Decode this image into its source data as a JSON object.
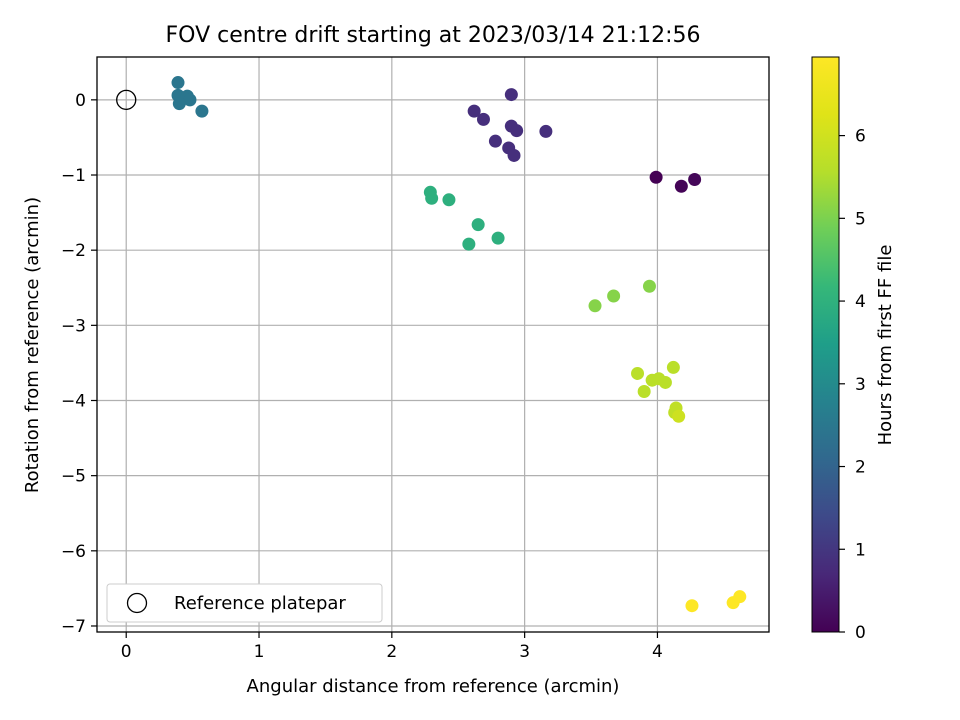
{
  "chart_data": {
    "type": "scatter",
    "title": "FOV centre drift starting at 2023/03/14 21:12:56",
    "xlabel": "Angular distance from reference (arcmin)",
    "ylabel": "Rotation from reference (arcmin)",
    "xlim": [
      -0.22,
      4.84
    ],
    "ylim": [
      -7.08,
      0.57
    ],
    "xticks": [
      0,
      1,
      2,
      3,
      4
    ],
    "yticks": [
      0,
      -1,
      -2,
      -3,
      -4,
      -5,
      -6,
      -7
    ],
    "grid": true,
    "legend": {
      "location": "lower-left",
      "entries": [
        "Reference platepar"
      ]
    },
    "reference_point": {
      "x": 0,
      "y": 0,
      "label": "Reference platepar"
    },
    "colorbar": {
      "label": "Hours from first FF file",
      "colormap": "viridis",
      "range": [
        0,
        6.95
      ],
      "ticks": [
        0,
        1,
        2,
        3,
        4,
        5,
        6
      ]
    },
    "points": [
      {
        "x": 3.99,
        "y": -1.03,
        "hours": 0.0
      },
      {
        "x": 4.18,
        "y": -1.15,
        "hours": 0.05
      },
      {
        "x": 4.28,
        "y": -1.06,
        "hours": 0.1
      },
      {
        "x": 2.9,
        "y": 0.07,
        "hours": 0.85
      },
      {
        "x": 2.62,
        "y": -0.15,
        "hours": 0.85
      },
      {
        "x": 2.69,
        "y": -0.26,
        "hours": 0.85
      },
      {
        "x": 2.9,
        "y": -0.35,
        "hours": 0.85
      },
      {
        "x": 2.94,
        "y": -0.41,
        "hours": 0.85
      },
      {
        "x": 3.16,
        "y": -0.42,
        "hours": 0.85
      },
      {
        "x": 2.78,
        "y": -0.55,
        "hours": 0.85
      },
      {
        "x": 2.88,
        "y": -0.64,
        "hours": 0.85
      },
      {
        "x": 2.92,
        "y": -0.74,
        "hours": 0.85
      },
      {
        "x": 0.39,
        "y": 0.23,
        "hours": 2.45
      },
      {
        "x": 0.39,
        "y": 0.06,
        "hours": 2.45
      },
      {
        "x": 0.46,
        "y": 0.05,
        "hours": 2.45
      },
      {
        "x": 0.48,
        "y": 0.0,
        "hours": 2.45
      },
      {
        "x": 0.4,
        "y": -0.05,
        "hours": 2.45
      },
      {
        "x": 0.57,
        "y": -0.15,
        "hours": 2.45
      },
      {
        "x": 2.29,
        "y": -1.23,
        "hours": 3.95
      },
      {
        "x": 2.3,
        "y": -1.31,
        "hours": 3.95
      },
      {
        "x": 2.43,
        "y": -1.33,
        "hours": 3.95
      },
      {
        "x": 2.65,
        "y": -1.66,
        "hours": 3.95
      },
      {
        "x": 2.8,
        "y": -1.84,
        "hours": 3.95
      },
      {
        "x": 2.58,
        "y": -1.92,
        "hours": 3.95
      },
      {
        "x": 3.94,
        "y": -2.48,
        "hours": 5.1
      },
      {
        "x": 3.67,
        "y": -2.61,
        "hours": 5.1
      },
      {
        "x": 3.53,
        "y": -2.74,
        "hours": 5.1
      },
      {
        "x": 4.12,
        "y": -3.56,
        "hours": 5.65
      },
      {
        "x": 3.85,
        "y": -3.64,
        "hours": 5.65
      },
      {
        "x": 3.96,
        "y": -3.73,
        "hours": 5.65
      },
      {
        "x": 4.01,
        "y": -3.71,
        "hours": 5.65
      },
      {
        "x": 4.06,
        "y": -3.76,
        "hours": 5.65
      },
      {
        "x": 3.9,
        "y": -3.88,
        "hours": 5.65
      },
      {
        "x": 4.14,
        "y": -4.1,
        "hours": 5.75
      },
      {
        "x": 4.13,
        "y": -4.16,
        "hours": 5.75
      },
      {
        "x": 4.16,
        "y": -4.21,
        "hours": 5.95
      },
      {
        "x": 4.26,
        "y": -6.73,
        "hours": 6.95
      },
      {
        "x": 4.57,
        "y": -6.69,
        "hours": 6.95
      },
      {
        "x": 4.62,
        "y": -6.61,
        "hours": 6.95
      }
    ]
  }
}
